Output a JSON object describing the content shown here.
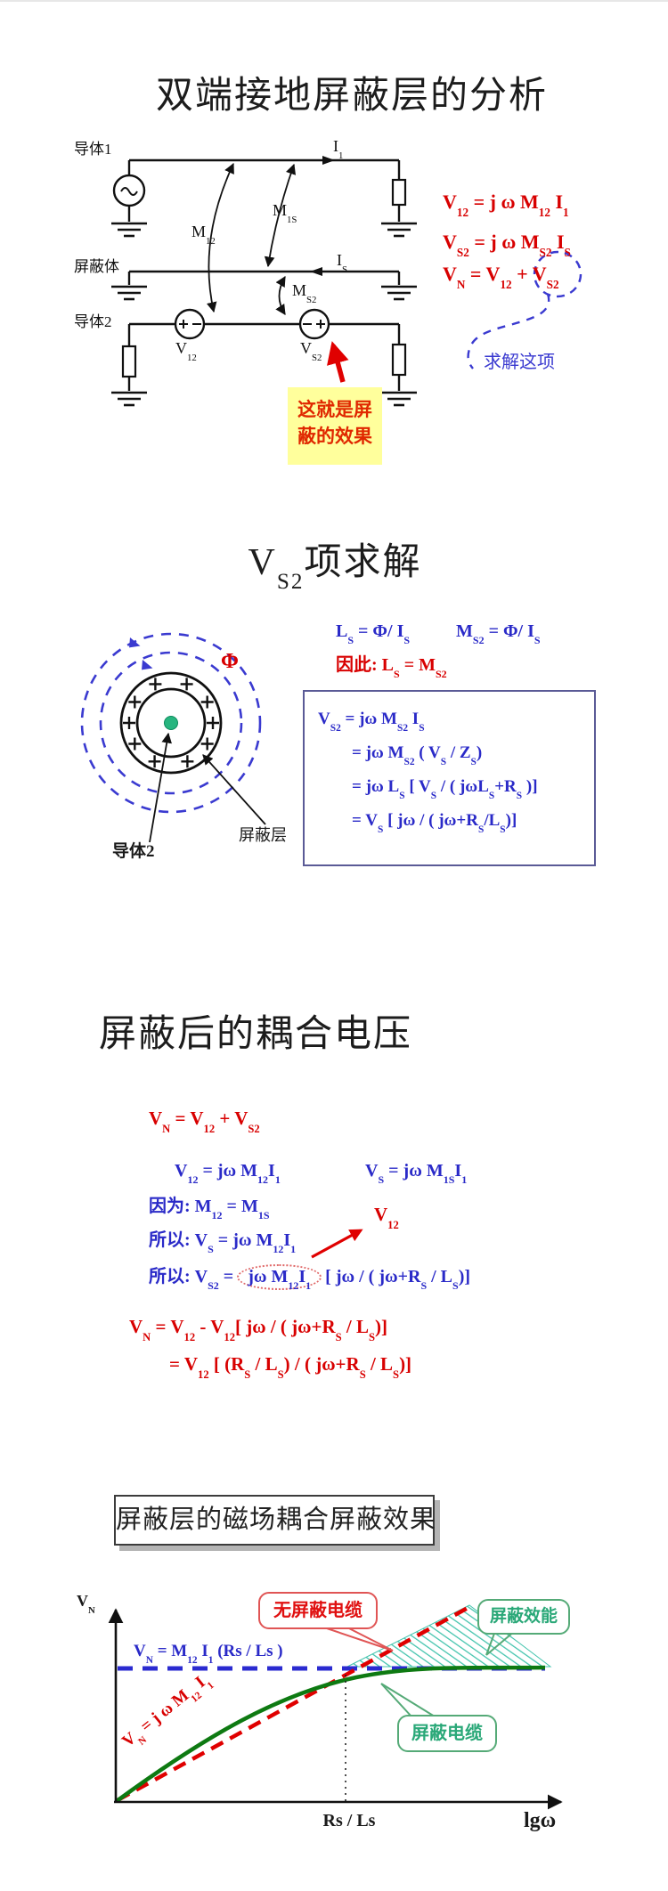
{
  "slide1": {
    "title": "双端接地屏蔽层的分析",
    "circuit": {
      "conductor1_label": "导体1",
      "shield_label": "屏蔽体",
      "conductor2_label": "导体2",
      "current1": "I_{1}",
      "current_shield": "I_{S}",
      "mutual_12": "M_{12}",
      "mutual_1s": "M_{1S}",
      "mutual_s2": "M_{S2}",
      "source1_label": "V_{12}",
      "source2_label": "V_{S2}",
      "source1_polarity": "+ -",
      "source2_polarity": "- +"
    },
    "equations": [
      "V_{12} = j ω M_{12} I_{1}",
      "V_{S2} = j ω  M_{S2}  I_{S}",
      "V_{N} = V_{12} + V_{S2}"
    ],
    "solve_note": "求解这项",
    "highlight_line1": "这就是屏",
    "highlight_line2": "蔽的效果"
  },
  "slide2": {
    "title": "V_{S2}项求解",
    "eq_ls": "L_{S} = Φ/ I_{S}",
    "eq_ms2": "M_{S2} = Φ/ I_{S}",
    "eq_therefore": "因此:  L_{S} =  M_{S2}",
    "flux_label": "Φ",
    "conductor2_label": "导体2",
    "shield_layer_label": "屏蔽层",
    "derivation": [
      "V_{S2}  =  jω  M_{S2} I_{S}",
      "=  jω M_{S2} ( V_{S} / Z_{S})",
      "=  jω L_{S} [ V_{S} / ( jωL_{S}+R_{S} )]",
      "=  V_{S} [ jω / ( jω+R_{S}/L_{S})]"
    ]
  },
  "slide3": {
    "title": "屏蔽后的耦合电压",
    "eq_vn": "V_{N} = V_{12} +  V_{S2}",
    "eq_v12": "V_{12} = jω M_{12}I_{1}",
    "eq_vs": "V_{S} = jω M_{1S}I_{1}",
    "eq_because": "因为:  M_{12} = M_{1S}",
    "eq_so1": "所以:  V_{S} = jω M_{12}I_{1}",
    "v12_ref": "V_{12}",
    "eq_so2_lead": "所以:  V_{S2} =",
    "eq_so2_circled": "jω M_{12}I_{1}",
    "eq_so2_tail": "[ jω / ( jω+R_{S} / L_{S})]",
    "eq_vn_line1": "V_{N}  = V_{12} -  V_{12}[ jω / ( jω+R_{S} / L_{S})]",
    "eq_vn_line2": "= V_{12} [ (R_{S} / L_{S}) / ( jω+R_{S} / L_{S})]"
  },
  "slide4": {
    "title": "屏蔽层的磁场耦合屏蔽效果",
    "y_axis_label": "V_{N}",
    "x_axis_label": "lgω",
    "x_tick_label": "Rs / Ls",
    "asymptote_eq": "V_{N} = M_{12} I_{1} (Rs / Ls )",
    "slope_eq": "V_{N} = j ω M_{12} I_{1}",
    "callout_unshielded": "无屏蔽电缆",
    "callout_effectiveness": "屏蔽效能",
    "callout_shielded": "屏蔽电缆"
  },
  "chart_data": {
    "type": "line",
    "title": "屏蔽层的磁场耦合屏蔽效果",
    "xlabel": "lgω",
    "ylabel": "V_N",
    "x_tick": "Rs / Ls",
    "grid": false,
    "series": [
      {
        "name": "无屏蔽电缆",
        "style": "red dashed",
        "behavior": "V_N = jωM12I1, rises linearly with lgω"
      },
      {
        "name": "屏蔽电缆",
        "style": "green solid",
        "behavior": "follows unshielded line at low ω, saturates at V_N = M12 I1 (Rs/Ls) beyond ω = Rs/Ls"
      }
    ],
    "shaded_region": {
      "name": "屏蔽效能",
      "style": "teal hatched",
      "meaning": "difference between unshielded and shielded noise voltage above Rs/Ls"
    },
    "annotations": [
      "V_N = M_12 I_1 (Rs / Ls) horizontal blue dashed asymptote",
      "vertical dotted marker at Rs / Ls"
    ]
  },
  "colors": {
    "accent_red": "#d80000",
    "accent_blue": "#2a2ac8",
    "dashed_blue": "#3a3ad0",
    "green_curve": "#0e7a12",
    "hatch_teal": "#45c4ae",
    "highlight_yellow": "#ffff9c",
    "callout_green": "#55aa77",
    "conductor_dot_green": "#27b57f"
  }
}
